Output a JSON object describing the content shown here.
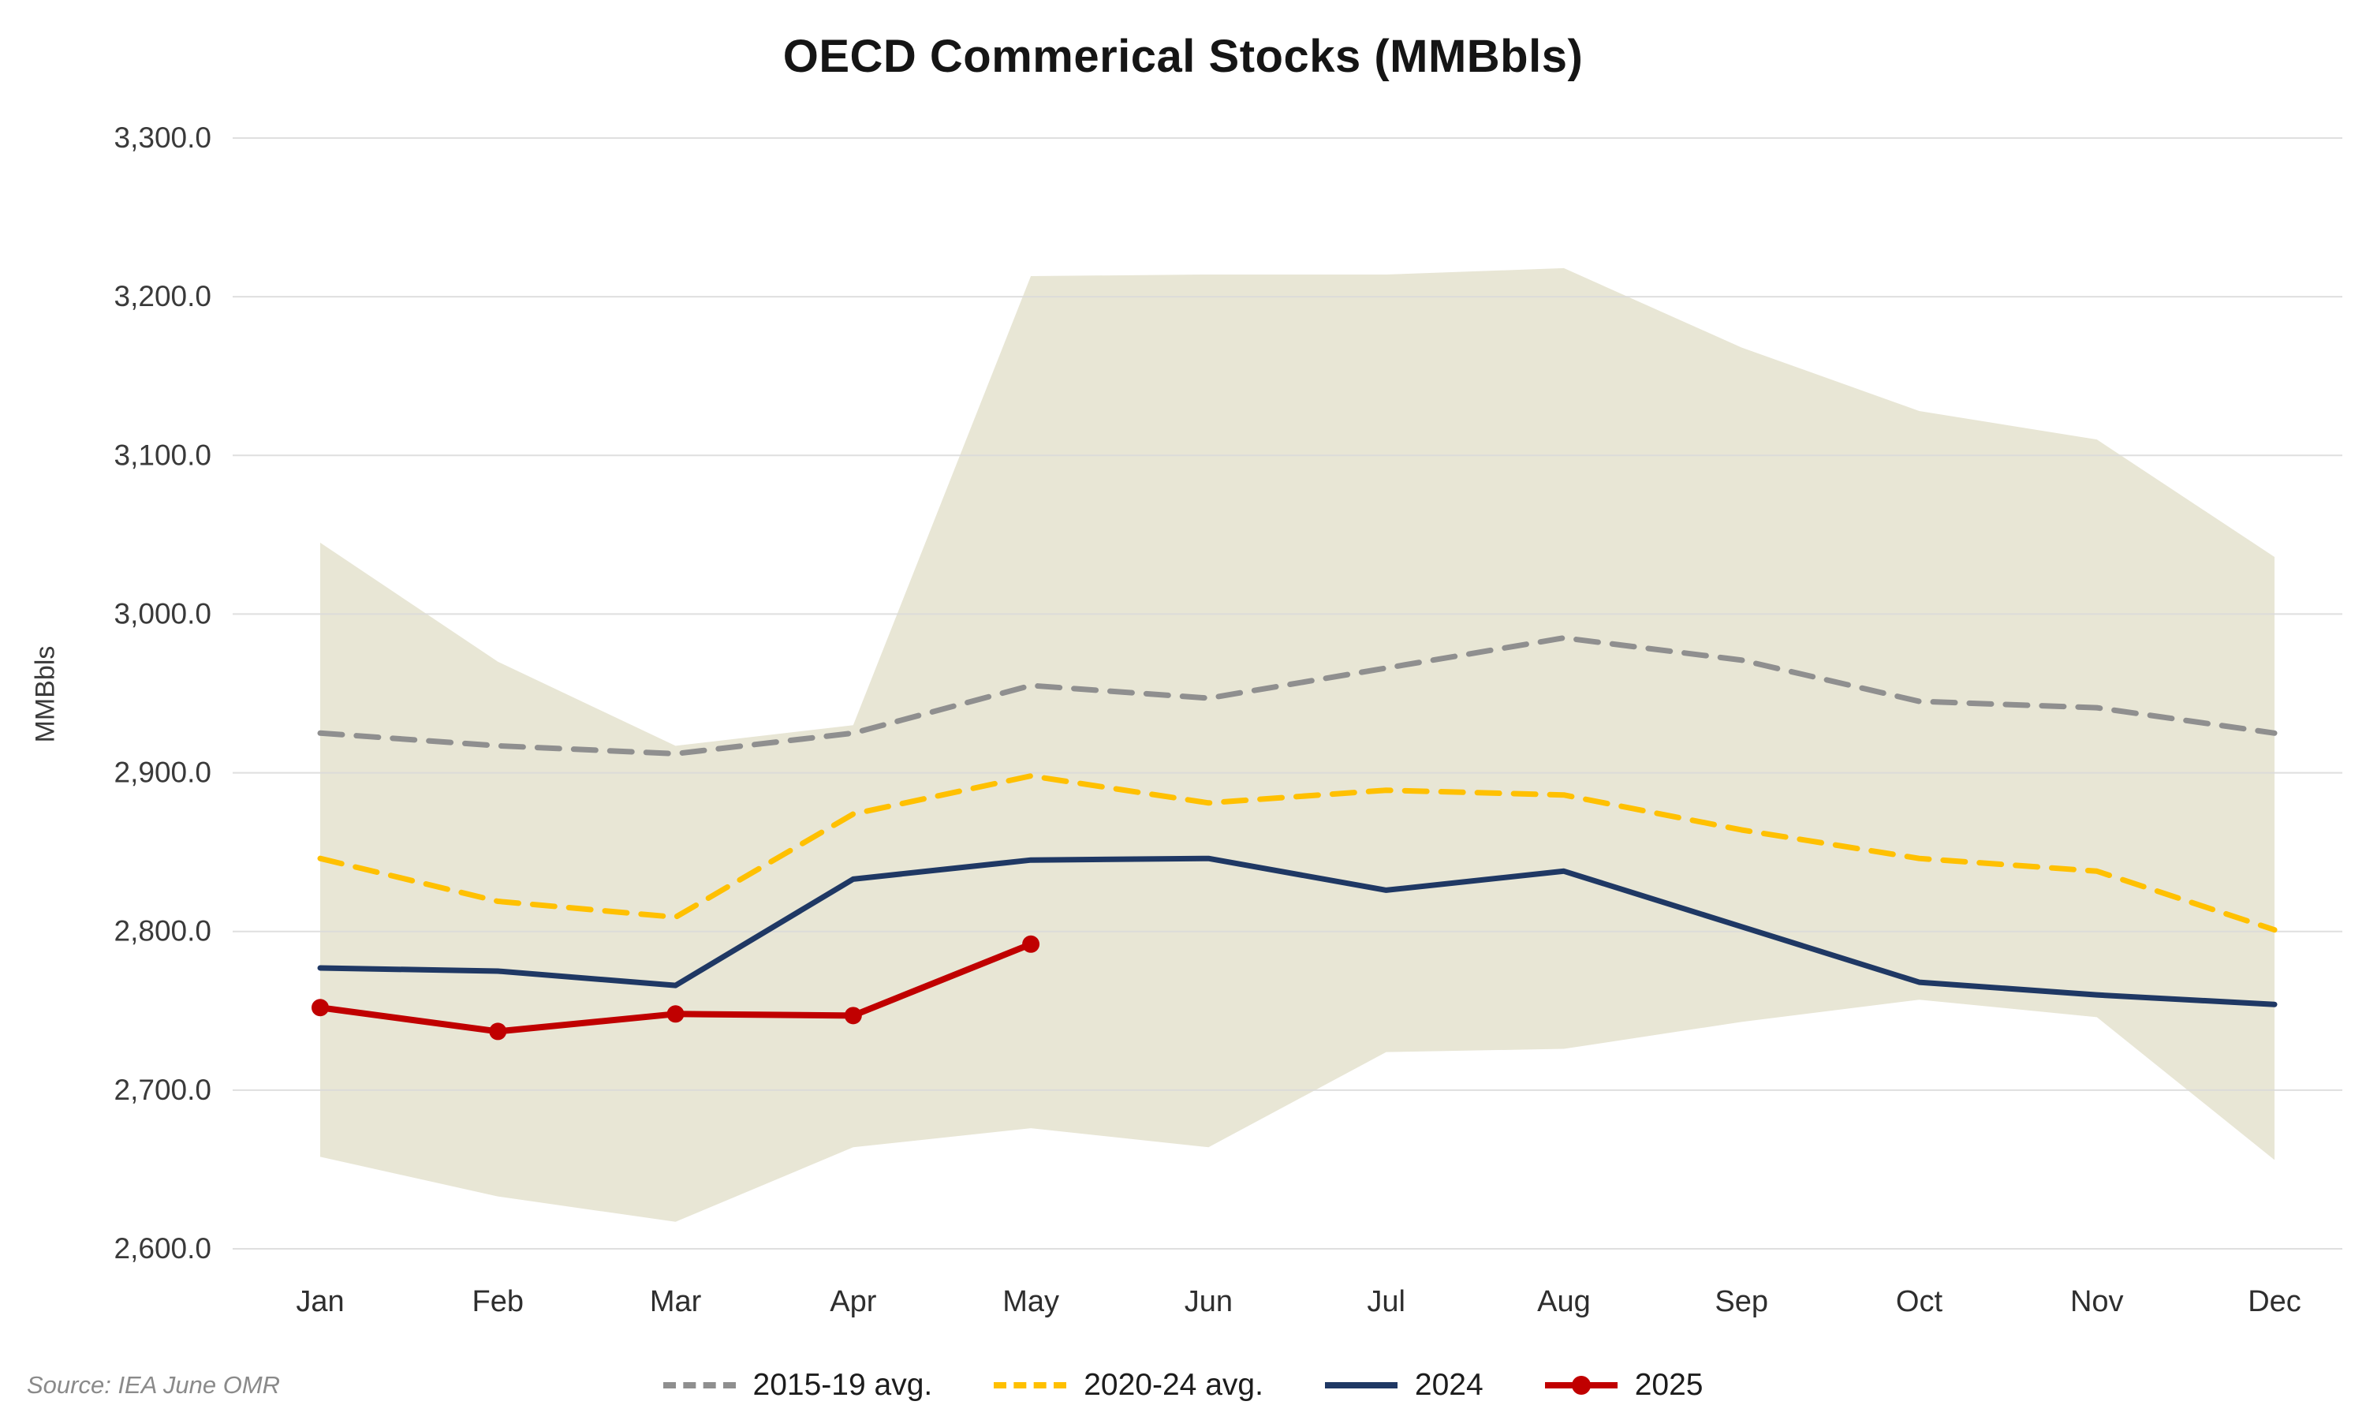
{
  "title": "OECD Commerical Stocks (MMBbls)",
  "y_axis_label": "MMBbls",
  "source": "Source: IEA June OMR",
  "legend": [
    {
      "label": "2015-19 avg."
    },
    {
      "label": "2020-24 avg."
    },
    {
      "label": "2024"
    },
    {
      "label": "2025"
    }
  ],
  "colors": {
    "band_fill": "#e8e6d5",
    "gridline": "#d9d9d9",
    "avg_2015_19": "#8f8f8f",
    "avg_2020_24": "#ffc000",
    "y2024": "#1f3864",
    "y2025": "#c00000",
    "axis_text": "#3a3a3a"
  },
  "chart_data": {
    "type": "line",
    "title": "OECD Commerical Stocks (MMBbls)",
    "xlabel": "",
    "ylabel": "MMBbls",
    "categories": [
      "Jan",
      "Feb",
      "Mar",
      "Apr",
      "May",
      "Jun",
      "Jul",
      "Aug",
      "Sep",
      "Oct",
      "Nov",
      "Dec"
    ],
    "ylim": [
      2600,
      3300
    ],
    "y_tick_step": 100,
    "y_ticks": [
      "2,600.0",
      "2,700.0",
      "2,800.0",
      "2,900.0",
      "3,000.0",
      "3,100.0",
      "3,200.0",
      "3,300.0"
    ],
    "grid": "horizontal",
    "legend_position": "bottom",
    "band": {
      "color": "#e8e6d5",
      "upper": [
        3045,
        2970,
        2917,
        2930,
        3213,
        3214,
        3214,
        3218,
        3168,
        3128,
        3110,
        3036
      ],
      "lower": [
        2658,
        2633,
        2617,
        2664,
        2676,
        2664,
        2724,
        2726,
        2743,
        2757,
        2746,
        2656
      ]
    },
    "series": [
      {
        "name": "2015-19 avg.",
        "color": "#8f8f8f",
        "dash": "28 18",
        "markers": false,
        "values": [
          2925,
          2917,
          2912,
          2925,
          2955,
          2947,
          2966,
          2985,
          2971,
          2945,
          2941,
          2925
        ]
      },
      {
        "name": "2020-24 avg.",
        "color": "#ffc000",
        "dash": "28 18",
        "markers": false,
        "values": [
          2846,
          2819,
          2809,
          2874,
          2898,
          2881,
          2889,
          2886,
          2864,
          2846,
          2838,
          2801
        ]
      },
      {
        "name": "2024",
        "color": "#1f3864",
        "dash": null,
        "markers": false,
        "values": [
          2777,
          2775,
          2766,
          2833,
          2845,
          2846,
          2826,
          2838,
          2803,
          2768,
          2760,
          2754
        ]
      },
      {
        "name": "2025",
        "color": "#c00000",
        "dash": null,
        "markers": true,
        "values": [
          2752,
          2737,
          2748,
          2747,
          2792
        ]
      }
    ]
  }
}
